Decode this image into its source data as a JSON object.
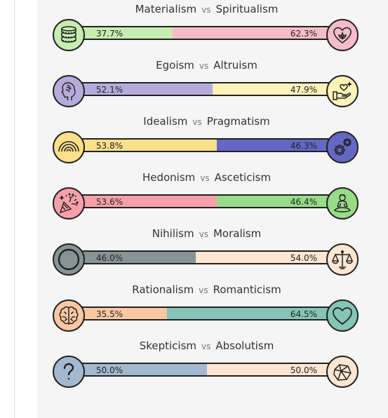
{
  "axes": [
    {
      "left_label": "Materialism",
      "vs": "vs",
      "right_label": "Spiritualism",
      "left_pct": "37.7%",
      "right_pct": "62.3%",
      "left_value": 37.7,
      "right_value": 62.3,
      "left_color": "#c7edb0",
      "right_color": "#f7bccb",
      "left_icon": "coins-icon",
      "right_icon": "heart-lotus-icon"
    },
    {
      "left_label": "Egoism",
      "vs": "vs",
      "right_label": "Altruism",
      "left_pct": "52.1%",
      "right_pct": "47.9%",
      "left_value": 52.1,
      "right_value": 47.9,
      "left_color": "#b6acdb",
      "right_color": "#fdf2b8",
      "left_icon": "head-profile-icon",
      "right_icon": "helping-hand-icon"
    },
    {
      "left_label": "Idealism",
      "vs": "vs",
      "right_label": "Pragmatism",
      "left_pct": "53.8%",
      "right_pct": "46.3%",
      "left_value": 53.8,
      "right_value": 46.3,
      "left_color": "#fde08a",
      "right_color": "#6467c4",
      "left_icon": "rainbow-icon",
      "right_icon": "gears-icon"
    },
    {
      "left_label": "Hedonism",
      "vs": "vs",
      "right_label": "Asceticism",
      "left_pct": "53.6%",
      "right_pct": "46.4%",
      "left_value": 53.6,
      "right_value": 46.4,
      "left_color": "#f7a0aa",
      "right_color": "#97dc87",
      "left_icon": "party-popper-icon",
      "right_icon": "meditation-icon"
    },
    {
      "left_label": "Nihilism",
      "vs": "vs",
      "right_label": "Moralism",
      "left_pct": "46.0%",
      "right_pct": "54.0%",
      "left_value": 46.0,
      "right_value": 54.0,
      "left_color": "#879493",
      "right_color": "#fde6d2",
      "left_icon": "empty-circle-icon",
      "right_icon": "balance-scale-icon"
    },
    {
      "left_label": "Rationalism",
      "vs": "vs",
      "right_label": "Romanticism",
      "left_pct": "35.5%",
      "right_pct": "64.5%",
      "left_value": 35.5,
      "right_value": 64.5,
      "left_color": "#fdc7a4",
      "right_color": "#86c5b5",
      "left_icon": "brain-icon",
      "right_icon": "heart-icon"
    },
    {
      "left_label": "Skepticism",
      "vs": "vs",
      "right_label": "Absolutism",
      "left_pct": "50.0%",
      "right_pct": "50.0%",
      "left_value": 50.0,
      "right_value": 50.0,
      "left_color": "#a3b9d0",
      "right_color": "#fde6d2",
      "left_icon": "question-mark-icon",
      "right_icon": "crystal-icon"
    }
  ]
}
